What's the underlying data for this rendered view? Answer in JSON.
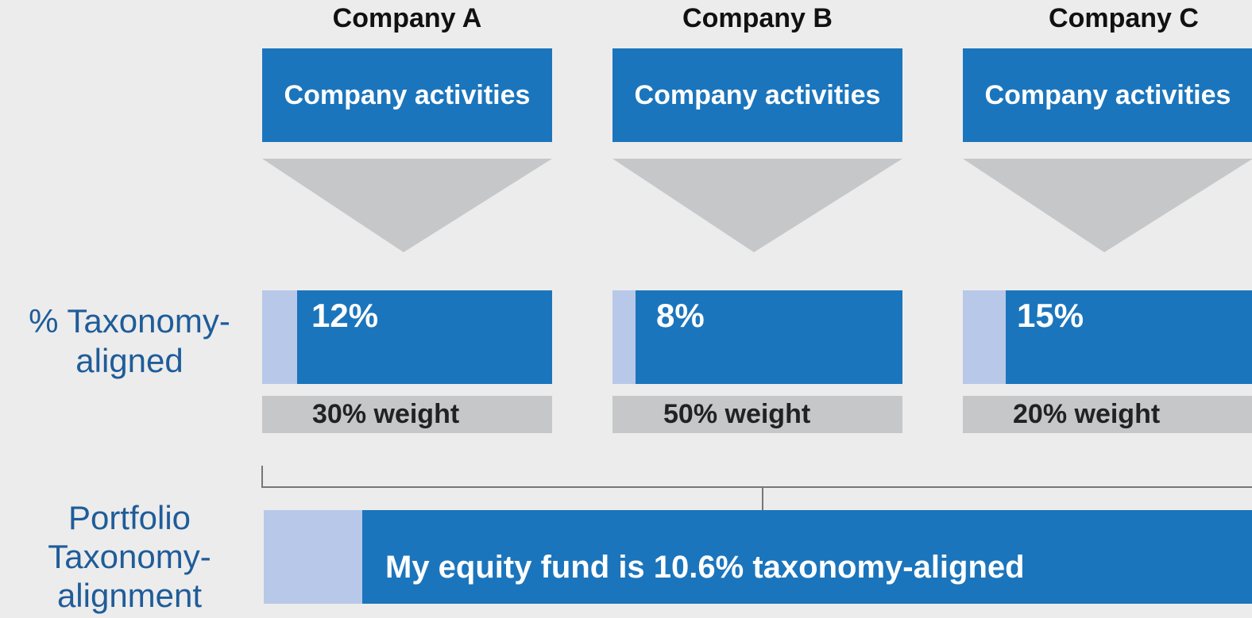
{
  "companies": [
    {
      "name": "Company A",
      "activities": "Company activities",
      "aligned": "12%",
      "weight": "30% weight"
    },
    {
      "name": "Company B",
      "activities": "Company activities",
      "aligned": "8%",
      "weight": "50% weight"
    },
    {
      "name": "Company C",
      "activities": "Company activities",
      "aligned": "15%",
      "weight": "20% weight"
    }
  ],
  "row_labels": {
    "aligned": [
      "% Taxonomy-",
      "aligned"
    ],
    "portfolio": [
      "Portfolio",
      "Taxonomy-",
      "alignment"
    ]
  },
  "portfolio_text": "My equity fund is 10.6% taxonomy-aligned"
}
